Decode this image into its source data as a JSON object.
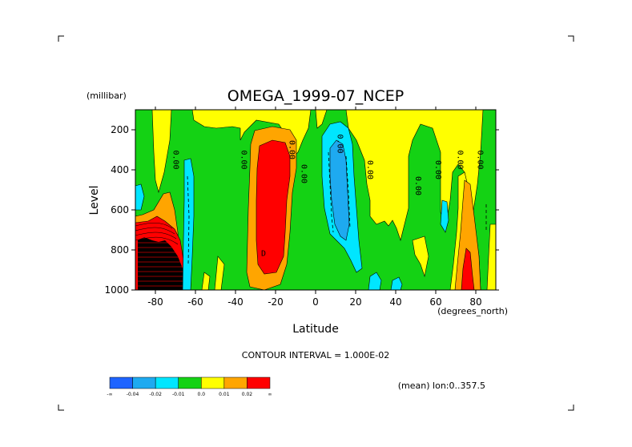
{
  "chart_data": {
    "type": "heatmap",
    "title": "OMEGA_1999-07_NCEP",
    "xlabel": "Latitude",
    "x_units": "(degrees_north)",
    "ylabel": "Level",
    "y_units": "(millibar)",
    "xlim": [
      -90,
      90
    ],
    "ylim": [
      1000,
      100
    ],
    "x_ticks": [
      -80,
      -60,
      -40,
      -20,
      0,
      20,
      40,
      60,
      80
    ],
    "y_ticks": [
      200,
      400,
      600,
      800,
      1000
    ],
    "contour_interval_text": "CONTOUR INTERVAL = 1.000E-02",
    "subtitle": "(mean) lon:0..357.5",
    "colorbar": {
      "labels": [
        "-∞",
        "-0.04",
        "-0.02",
        "-0.01",
        "0.0",
        "0.01",
        "0.02",
        "∞"
      ],
      "colors": [
        "#1e64ff",
        "#1eaaf0",
        "#00e6ff",
        "#14d214",
        "#ffff00",
        "#ffa500",
        "#ff0000"
      ]
    },
    "contour_labels": [
      {
        "text": "0.00",
        "lat": -71,
        "lev": 350
      },
      {
        "text": "0.00",
        "lat": -37,
        "lev": 350
      },
      {
        "text": "0.00",
        "lat": -13,
        "lev": 300
      },
      {
        "text": "0.00",
        "lat": -7,
        "lev": 420
      },
      {
        "text": "0.00",
        "lat": 11,
        "lev": 270
      },
      {
        "text": "0.00",
        "lat": 26,
        "lev": 400
      },
      {
        "text": "0.00",
        "lat": 50,
        "lev": 480
      },
      {
        "text": "0.00",
        "lat": 60,
        "lev": 400
      },
      {
        "text": "0.00",
        "lat": 71,
        "lev": 350
      },
      {
        "text": "0.00",
        "lat": 81,
        "lev": 350
      },
      {
        "text": "D",
        "lat": -26,
        "lev": 830
      }
    ]
  }
}
